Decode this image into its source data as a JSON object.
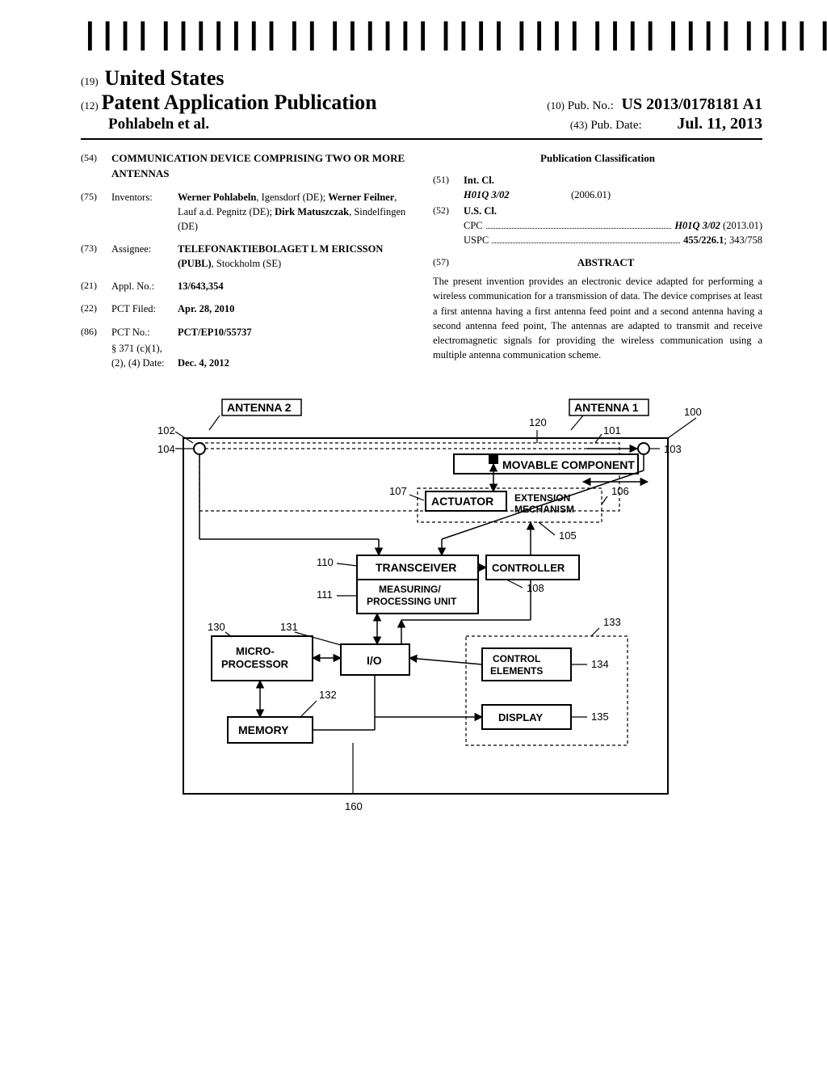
{
  "barcode": {
    "text": "US 20130178181A1"
  },
  "masthead": {
    "country_code": "(19)",
    "country_name": "United States",
    "pub_code": "(12)",
    "pub_title": "Patent Application Publication",
    "authors": "Pohlabeln et al.",
    "pubno_code": "(10)",
    "pubno_label": "Pub. No.:",
    "pubno_value": "US 2013/0178181 A1",
    "pubdate_code": "(43)",
    "pubdate_label": "Pub. Date:",
    "pubdate_value": "Jul. 11, 2013"
  },
  "left_fields": {
    "title_code": "(54)",
    "title": "COMMUNICATION DEVICE COMPRISING TWO OR MORE ANTENNAS",
    "inventors_code": "(75)",
    "inventors_label": "Inventors:",
    "inventors_html": "Werner Pohlabeln|, Igensdorf (DE); |Werner Feilner|, Lauf a.d. Pegnitz (DE); |Dirk Matuszczak|, Sindelfingen (DE)",
    "assignee_code": "(73)",
    "assignee_label": "Assignee:",
    "assignee_value": "TELEFONAKTIEBOLAGET L M ERICSSON (PUBL)",
    "assignee_loc": ", Stockholm (SE)",
    "appl_code": "(21)",
    "appl_label": "Appl. No.:",
    "appl_value": "13/643,354",
    "filed_code": "(22)",
    "filed_label": "PCT Filed:",
    "filed_value": "Apr. 28, 2010",
    "pct_code": "(86)",
    "pct_label": "PCT No.:",
    "pct_value": "PCT/EP10/55737",
    "s371_label": "§ 371 (c)(1),",
    "s371_line2": "(2), (4) Date:",
    "s371_value": "Dec. 4, 2012"
  },
  "right_fields": {
    "classification_hdr": "Publication Classification",
    "intcl_code": "(51)",
    "intcl_label": "Int. Cl.",
    "intcl_sym": "H01Q 3/02",
    "intcl_ver": "(2006.01)",
    "uscl_code": "(52)",
    "uscl_label": "U.S. Cl.",
    "cpc_lead": "CPC",
    "cpc_value": "H01Q 3/02",
    "cpc_year": " (2013.01)",
    "uspc_lead": "USPC",
    "uspc_value1": "455/226.1",
    "uspc_value2": "; 343/758",
    "abstract_code": "(57)",
    "abstract_hdr": "ABSTRACT",
    "abstract_text": "The present invention provides an electronic device adapted for performing a wireless communication for a transmission of data. The device comprises at least a first antenna having a first antenna feed point and a second antenna having a second antenna feed point, The antennas are adapted to transmit and receive electromagnetic signals for providing the wireless communication using a multiple antenna communication scheme."
  },
  "figure": {
    "outer_width": 710,
    "outer_height": 520,
    "stroke": "#000000",
    "dash": "4,3",
    "font_size_box": 14,
    "font_size_label": 13,
    "labels": {
      "antenna1": "ANTENNA 1",
      "antenna2": "ANTENNA 2",
      "movable": "MOVABLE COMPONENT",
      "actuator": "ACTUATOR",
      "extension": "EXTENSION\nMECHANISM",
      "transceiver": "TRANSCEIVER",
      "controller": "CONTROLLER",
      "measuring": "MEASURING/\nPROCESSING UNIT",
      "micro": "MICRO-\nPROCESSOR",
      "io": "I/O",
      "control_elements": "CONTROL\nELEMENTS",
      "memory": "MEMORY",
      "display": "DISPLAY"
    },
    "refs": {
      "r100": "100",
      "r101": "101",
      "r102": "102",
      "r103": "103",
      "r104": "104",
      "r105": "105",
      "r106": "106",
      "r107": "107",
      "r108": "108",
      "r110": "110",
      "r111": "111",
      "r120": "120",
      "r130": "130",
      "r131": "131",
      "r132": "132",
      "r133": "133",
      "r134": "134",
      "r135": "135",
      "r160": "160"
    }
  }
}
